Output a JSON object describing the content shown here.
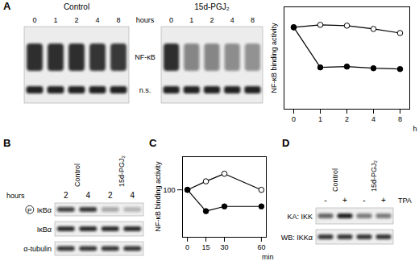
{
  "panels": {
    "A": {
      "label": "A",
      "lane_header": "hours",
      "band_labels": [
        "NF-κB",
        "n.s."
      ],
      "gels": [
        {
          "title": "Control",
          "lanes": [
            "0",
            "1",
            "2",
            "4",
            "8"
          ],
          "band_intensity": [
            [
              0.85,
              0.85,
              0.85,
              0.82,
              0.8
            ],
            [
              0.9,
              0.9,
              0.9,
              0.9,
              0.9
            ]
          ]
        },
        {
          "title": "15d-PGJ₂",
          "lanes": [
            "0",
            "1",
            "2",
            "4",
            "8"
          ],
          "band_intensity": [
            [
              0.85,
              0.45,
              0.45,
              0.42,
              0.4
            ],
            [
              0.9,
              0.9,
              0.9,
              0.9,
              0.9
            ]
          ]
        }
      ]
    },
    "B": {
      "label": "B",
      "columns": [
        "Control",
        "15d-PGJ₂"
      ],
      "lane_header": "hours",
      "lanes": [
        "2",
        "4",
        "2",
        "4"
      ],
      "rows": [
        {
          "marker": "P",
          "label": "IκBα",
          "band_intensity": [
            0.75,
            0.8,
            0.3,
            0.25
          ]
        },
        {
          "label": "IκBα",
          "band_intensity": [
            0.85,
            0.85,
            0.85,
            0.85
          ]
        },
        {
          "label": "α-tubulin",
          "band_intensity": [
            0.8,
            0.8,
            0.8,
            0.8
          ]
        }
      ]
    },
    "C": {
      "label": "C"
    },
    "D": {
      "label": "D",
      "columns": [
        "Control",
        "15d-PGJ₂"
      ],
      "lane_header": "TPA",
      "lanes": [
        "-",
        "+",
        "-",
        "+"
      ],
      "rows": [
        {
          "label": "KA: IKK",
          "band_intensity": [
            0.6,
            0.9,
            0.5,
            0.5
          ]
        },
        {
          "label": "WB: IKKα",
          "band_intensity": [
            0.8,
            0.8,
            0.8,
            0.8
          ]
        }
      ]
    }
  },
  "chart_data": [
    {
      "type": "line",
      "y_label": "NF-κB binding activity",
      "x_label": "h",
      "categories": [
        "0",
        "1",
        "2",
        "4",
        "8"
      ],
      "ylim": [
        0,
        125
      ],
      "yticks": [],
      "tick_labels": "x",
      "series": [
        {
          "marker": "open",
          "color": "#000000",
          "values": [
            100,
            103,
            102,
            98,
            93
          ]
        },
        {
          "marker": "filled",
          "color": "#000000",
          "values": [
            100,
            51,
            52,
            50,
            49
          ]
        }
      ]
    },
    {
      "type": "line",
      "y_label": "NF-κB binding activity",
      "x_label": "min",
      "x": [
        0,
        15,
        30,
        60
      ],
      "xlim": [
        -4,
        64
      ],
      "xticks": [
        0,
        15,
        30,
        60
      ],
      "ylim": [
        0,
        170
      ],
      "yticks": [
        100
      ],
      "series": [
        {
          "marker": "open",
          "color": "#000000",
          "values": [
            100,
            118,
            134,
            100
          ]
        },
        {
          "marker": "filled",
          "color": "#000000",
          "values": [
            100,
            55,
            65,
            65
          ]
        }
      ]
    }
  ]
}
